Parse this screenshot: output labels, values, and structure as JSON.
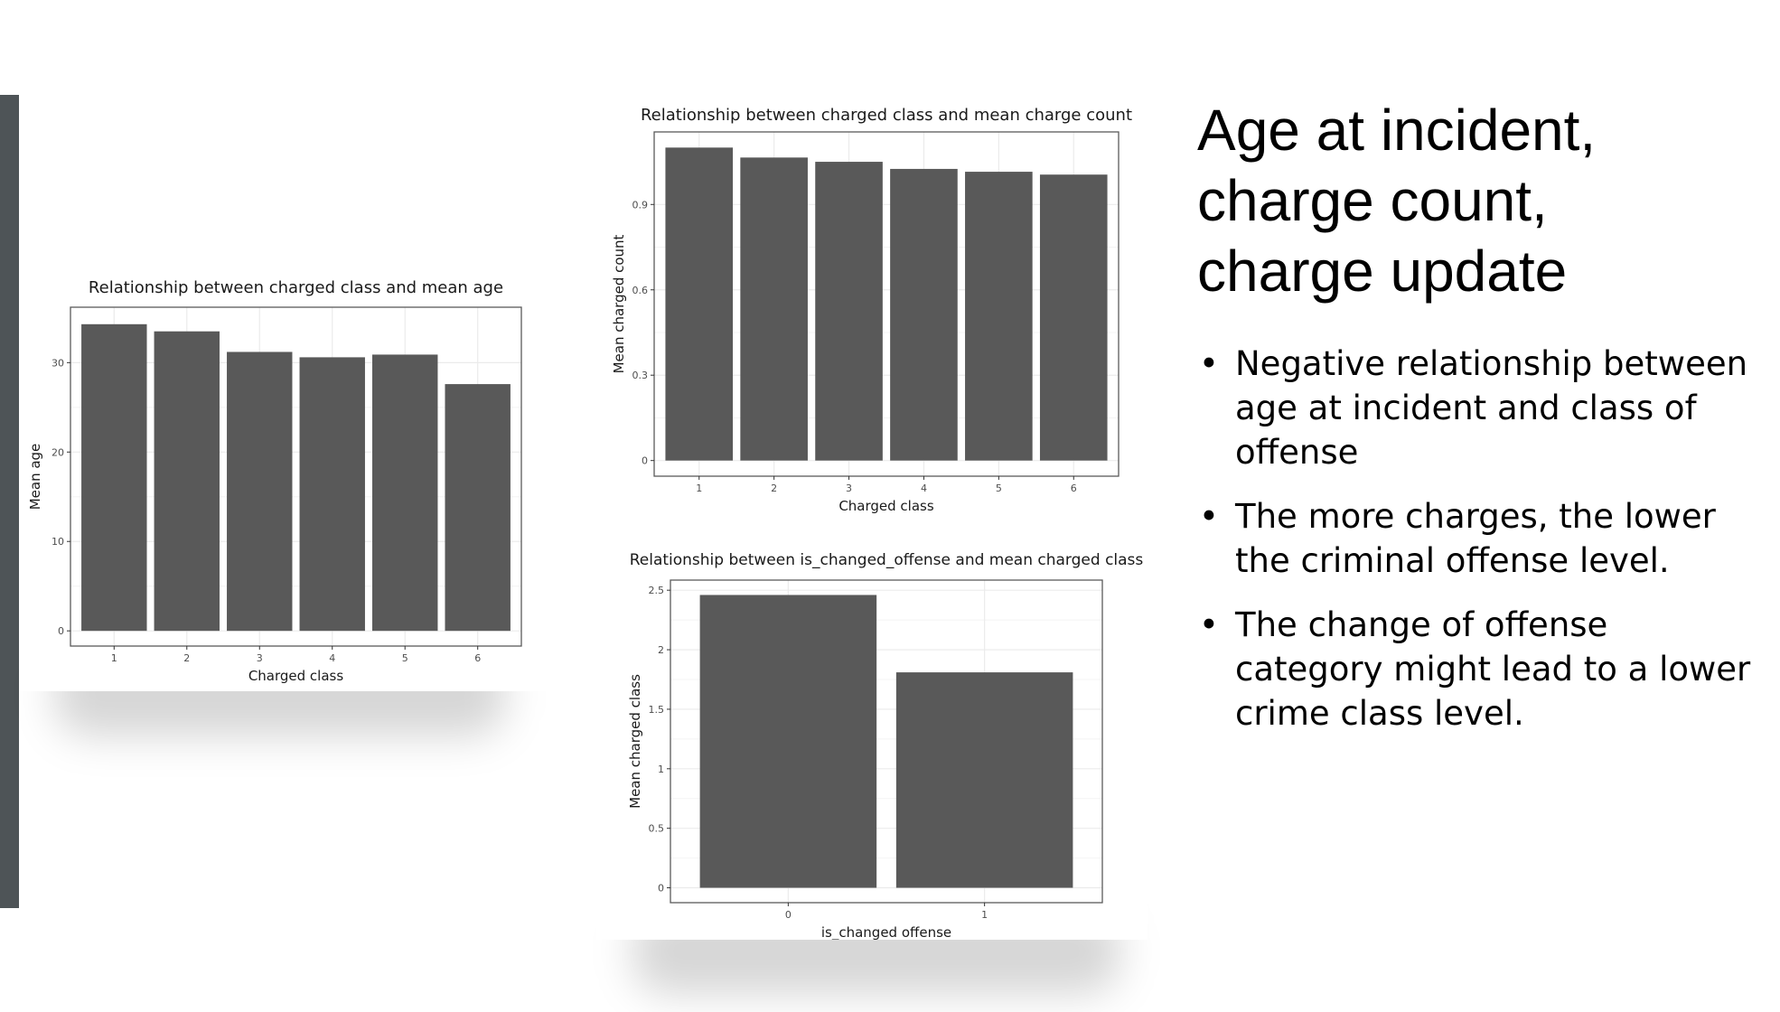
{
  "slide": {
    "title_lines": [
      "Age at incident,",
      "charge count,",
      "charge update"
    ],
    "bullets": [
      "Negative relationship between age at incident and class of offense",
      "The more charges, the lower the criminal offense level.",
      "The change of offense category might lead to a lower crime class level."
    ],
    "bullet_symbol": "•",
    "colors": {
      "accent_bar": "#4e5457",
      "bar_fill": "#595959"
    }
  },
  "chart_data": [
    {
      "type": "bar",
      "title": "Relationship between charged class and mean age",
      "xlabel": "Charged class",
      "ylabel": "Mean age",
      "categories": [
        "1",
        "2",
        "3",
        "4",
        "5",
        "6"
      ],
      "values": [
        34.3,
        33.5,
        31.2,
        30.6,
        30.9,
        27.6
      ],
      "ylim": [
        -1.7,
        36.2
      ],
      "yticks": [
        0,
        10,
        20,
        30
      ],
      "grid": true
    },
    {
      "type": "bar",
      "title": "Relationship between charged class and mean charge count",
      "xlabel": "Charged class",
      "ylabel": "Mean charged count",
      "categories": [
        "1",
        "2",
        "3",
        "4",
        "5",
        "6"
      ],
      "values": [
        1.1,
        1.065,
        1.05,
        1.025,
        1.015,
        1.005
      ],
      "ylim": [
        -0.055,
        1.155
      ],
      "yticks": [
        0,
        0.3,
        0.6,
        0.9
      ],
      "grid": true
    },
    {
      "type": "bar",
      "title": "Relationship between is_changed_offense and mean charged class",
      "xlabel": "is_changed offense",
      "ylabel": "Mean charged class",
      "categories": [
        "0",
        "1"
      ],
      "values": [
        2.46,
        1.81
      ],
      "ylim": [
        -0.125,
        2.585
      ],
      "yticks": [
        0,
        0.5,
        1,
        1.5,
        2,
        2.5
      ],
      "grid": true
    }
  ]
}
